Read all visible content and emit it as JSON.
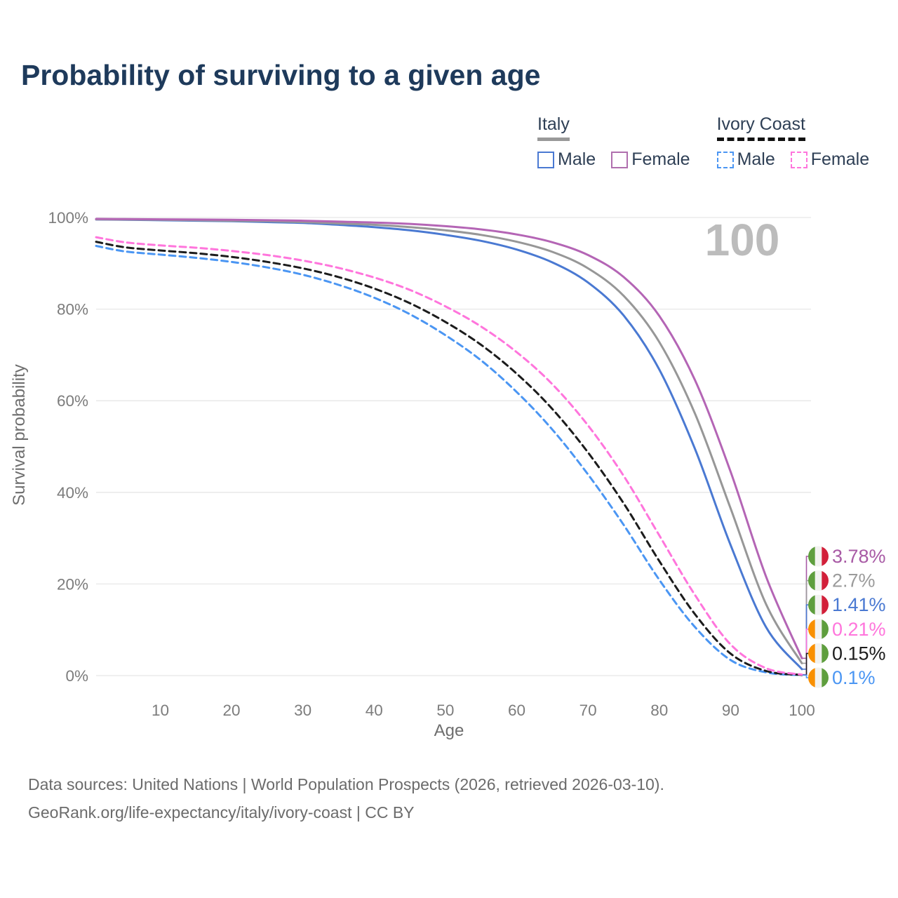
{
  "title": "Probability of surviving to a given age",
  "legend": {
    "groups": [
      {
        "label": "Italy",
        "style": "solid",
        "items": [
          {
            "label": "Male",
            "color": "#4a79d2"
          },
          {
            "label": "Female",
            "color": "#b06fae"
          }
        ]
      },
      {
        "label": "Ivory Coast",
        "style": "dashed",
        "items": [
          {
            "label": "Male",
            "color": "#4b96f3"
          },
          {
            "label": "Female",
            "color": "#ff75dc"
          }
        ]
      }
    ]
  },
  "chart_data": {
    "type": "line",
    "title": "Probability of surviving to a given age",
    "xlabel": "Age",
    "ylabel": "Survival probability",
    "xlim": [
      1,
      100
    ],
    "ylim": [
      0,
      100
    ],
    "grid": "horizontal",
    "watermark": "100",
    "x_ticks": [
      10,
      20,
      30,
      40,
      50,
      60,
      70,
      80,
      90,
      100
    ],
    "y_ticks": [
      0,
      20,
      40,
      60,
      80,
      100
    ],
    "y_tick_labels": [
      "0%",
      "20%",
      "40%",
      "60%",
      "80%",
      "100%"
    ],
    "x": [
      1,
      5,
      10,
      15,
      20,
      25,
      30,
      35,
      40,
      45,
      50,
      55,
      60,
      65,
      70,
      75,
      80,
      85,
      90,
      95,
      100
    ],
    "series": [
      {
        "name": "Ivory Coast Male",
        "country": "ivory-coast",
        "sex": "male",
        "style": "dashed",
        "color": "#4b96f3",
        "end_label": "0.1%",
        "values": [
          93.8,
          92.6,
          91.9,
          91.2,
          90.3,
          89.1,
          87.5,
          85.3,
          82.5,
          78.9,
          74.3,
          68.8,
          61.9,
          53.7,
          43.9,
          32.9,
          20.9,
          10.6,
          3.4,
          0.7,
          0.1
        ]
      },
      {
        "name": "Ivory Coast Both sexes",
        "country": "ivory-coast",
        "sex": "both",
        "style": "dashed",
        "color": "#1c1c1c",
        "end_label": "0.15%",
        "values": [
          94.7,
          93.5,
          92.8,
          92.2,
          91.4,
          90.3,
          88.9,
          87.0,
          84.5,
          81.3,
          77.2,
          72.2,
          65.9,
          58.2,
          48.7,
          37.6,
          25.0,
          13.4,
          4.8,
          1.0,
          0.15
        ]
      },
      {
        "name": "Ivory Coast Female",
        "country": "ivory-coast",
        "sex": "female",
        "style": "dashed",
        "color": "#ff75dc",
        "end_label": "0.21%",
        "values": [
          95.7,
          94.6,
          93.9,
          93.4,
          92.7,
          91.8,
          90.6,
          89.0,
          86.9,
          84.2,
          80.6,
          76.2,
          70.6,
          63.6,
          54.6,
          43.6,
          30.6,
          17.6,
          6.8,
          1.6,
          0.21
        ]
      },
      {
        "name": "Italy Male",
        "country": "italy",
        "sex": "male",
        "style": "solid",
        "color": "#4a79d2",
        "end_label": "1.41%",
        "values": [
          99.55,
          99.5,
          99.4,
          99.3,
          99.2,
          99.0,
          98.8,
          98.4,
          97.9,
          97.2,
          96.2,
          94.9,
          93.0,
          90.2,
          85.8,
          78.6,
          66.8,
          49.5,
          28.5,
          10.5,
          1.41
        ]
      },
      {
        "name": "Italy Both sexes",
        "country": "italy",
        "sex": "both",
        "style": "solid",
        "color": "#979797",
        "end_label": "2.7%",
        "values": [
          99.6,
          99.55,
          99.5,
          99.4,
          99.3,
          99.2,
          99.0,
          98.7,
          98.4,
          97.9,
          97.2,
          96.2,
          94.7,
          92.5,
          88.9,
          82.9,
          72.8,
          57.2,
          36.5,
          15.5,
          2.7
        ]
      },
      {
        "name": "Italy Female",
        "country": "italy",
        "sex": "female",
        "style": "solid",
        "color": "#b465b5",
        "end_label": "3.78%",
        "values": [
          99.7,
          99.65,
          99.6,
          99.55,
          99.5,
          99.4,
          99.3,
          99.1,
          98.9,
          98.6,
          98.1,
          97.4,
          96.3,
          94.6,
          91.8,
          87.0,
          78.5,
          64.5,
          44.5,
          21.5,
          3.78
        ]
      }
    ],
    "end_labels": [
      {
        "text": "3.78%",
        "color": "#a85aa5",
        "flag": "italy",
        "series": "Italy Female",
        "value": 3.78
      },
      {
        "text": "2.7%",
        "color": "#9b9b9b",
        "flag": "italy",
        "series": "Italy Both sexes",
        "value": 2.7
      },
      {
        "text": "1.41%",
        "color": "#4a79d2",
        "flag": "italy",
        "series": "Italy Male",
        "value": 1.41
      },
      {
        "text": "0.21%",
        "color": "#ff75dc",
        "flag": "ivory-coast",
        "series": "Ivory Coast Female",
        "value": 0.21
      },
      {
        "text": "0.15%",
        "color": "#1c1c1c",
        "flag": "ivory-coast",
        "series": "Ivory Coast Both sexes",
        "value": 0.15
      },
      {
        "text": "0.1%",
        "color": "#4b96f3",
        "flag": "ivory-coast",
        "series": "Ivory Coast Male",
        "value": 0.1
      }
    ],
    "flag_colors": {
      "italy": [
        "#5f9e3e",
        "#f2f2f0",
        "#d2203a"
      ],
      "ivory-coast": [
        "#f99000",
        "#f2f2f0",
        "#5f9e3e"
      ]
    }
  },
  "style_colors": {
    "title": "#1e3a5b",
    "axis_text": "#7c7c7c",
    "axis_title": "#6e6e6e",
    "gridline": "#e7e7e7",
    "watermark": "#bcbcbc",
    "footer": "#6b6b6b"
  },
  "footer": {
    "line1": "Data sources: United Nations | World Population Prospects (2026, retrieved 2026-03-10).",
    "line2": "GeoRank.org/life-expectancy/italy/ivory-coast | CC BY"
  }
}
